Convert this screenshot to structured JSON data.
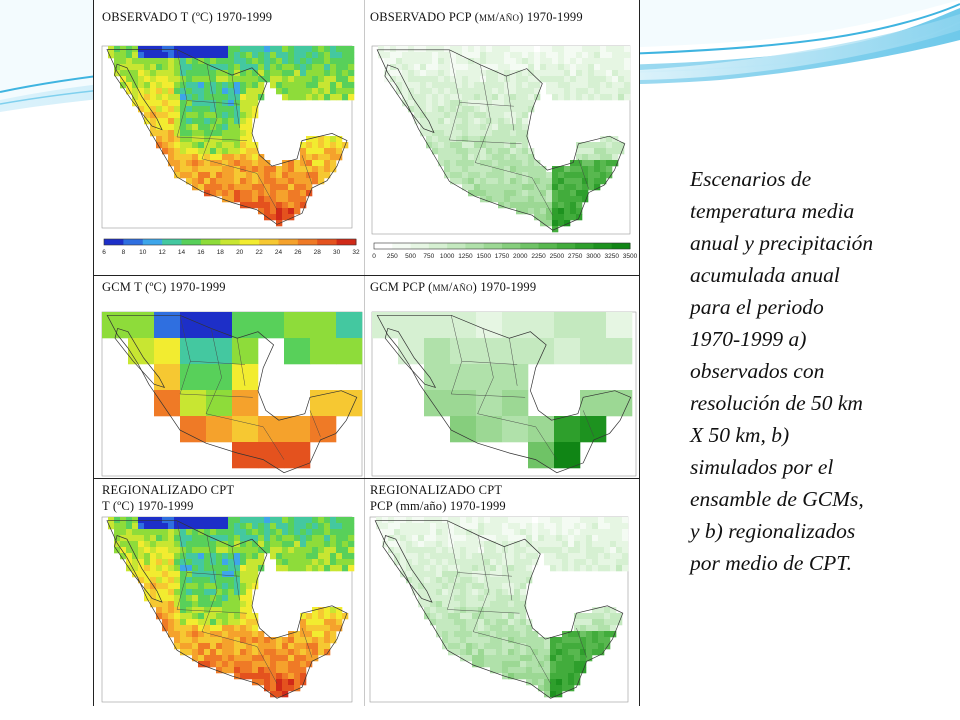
{
  "panels": {
    "obs_t_title": "OBSERVADO T (ºC)  1970-1999",
    "obs_p_title": "OBSERVADO PCP (mm/año) 1970-1999",
    "gcm_t_title": "GCM  T (ºC) 1970-1999",
    "gcm_p_title": "GCM PCP (mm/año) 1970-1999",
    "reg_t_title_1": "REGIONALIZADO CPT",
    "reg_t_title_2": "T (ºC) 1970-1999",
    "reg_p_title_1": "REGIONALIZADO CPT",
    "reg_p_title_2": "PCP (mm/año) 1970-1999"
  },
  "colorbars": {
    "temperature": {
      "ticks": [
        "6",
        "8",
        "10",
        "12",
        "14",
        "16",
        "18",
        "20",
        "22",
        "24",
        "26",
        "28",
        "30",
        "32"
      ],
      "colors": [
        "#1d2fc8",
        "#2f6fe0",
        "#3ea6ea",
        "#44c8a0",
        "#58d05a",
        "#8edc3a",
        "#c8e632",
        "#f2ec30",
        "#f6c832",
        "#f5a22c",
        "#ef7a26",
        "#e4521e",
        "#d02a18"
      ]
    },
    "precipitation": {
      "ticks": [
        "0",
        "250",
        "500",
        "750",
        "1000",
        "1250",
        "1500",
        "1750",
        "2000",
        "2250",
        "2500",
        "2750",
        "3000",
        "3250",
        "3500"
      ],
      "colors": [
        "#ffffff",
        "#f4fbf3",
        "#e6f6e3",
        "#d6f0d2",
        "#c4e9bf",
        "#b0e1aa",
        "#9cd894",
        "#86ce7d",
        "#6fc366",
        "#58b84f",
        "#42ac3c",
        "#2e9f2c",
        "#1d921f",
        "#108515"
      ]
    }
  },
  "caption": "Escenarios de\ntemperatura media\nanual y precipitación\nacumulada anual\npara el periodo\n1970-1999  a)\nobservados con\nresolución de 50 km\nX 50 km, b)\nsimulados por el\nensamble de GCMs,\ny b) regionalizados\npor medio de CPT."
}
